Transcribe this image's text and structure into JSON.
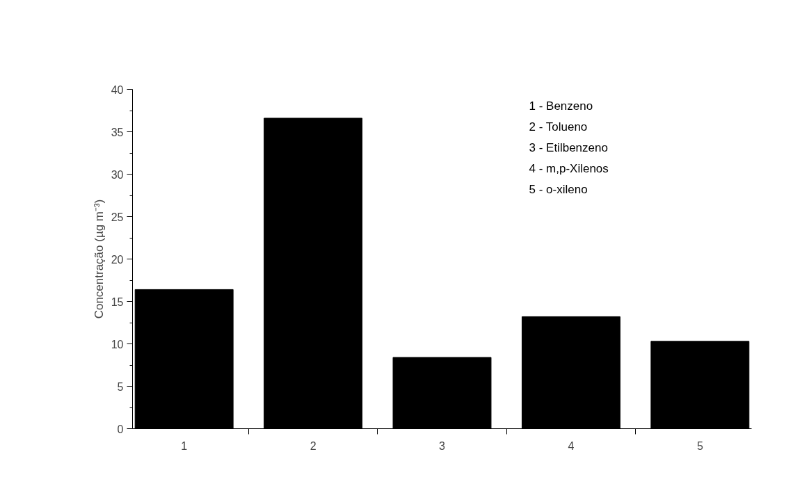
{
  "chart_data": {
    "type": "bar",
    "ylabel": "Concentração (µg m⁻³)",
    "categories": [
      "1",
      "2",
      "3",
      "4",
      "5"
    ],
    "values": [
      16.4,
      36.6,
      8.4,
      13.2,
      10.3
    ],
    "color": "#000000",
    "ylim": [
      0,
      40
    ],
    "yticks": [
      0,
      5,
      10,
      15,
      20,
      25,
      30,
      35,
      40
    ],
    "grid": false,
    "annotations": [
      "1 - Benzeno",
      "2 - Tolueno",
      "3 - Etilbenzeno",
      "4 - m,p-Xilenos",
      "5 - o-xileno"
    ]
  }
}
